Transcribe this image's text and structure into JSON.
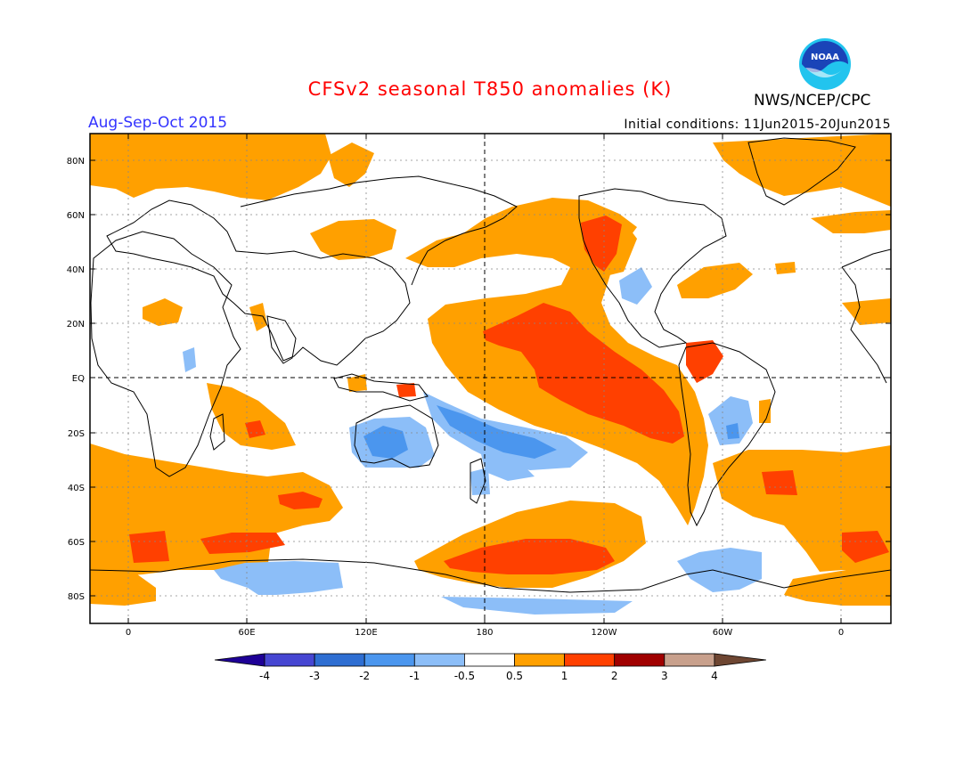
{
  "header": {
    "title": "CFSv2 seasonal T850 anomalies (K)",
    "org": "NWS/NCEP/CPC",
    "season": "Aug-Sep-Oct 2015",
    "initial_conditions": "Initial conditions: 11Jun2015-20Jun2015",
    "logo_text": "NOAA"
  },
  "colors": {
    "title": "#ff0000",
    "season": "#3333ff",
    "c_m4": "#1e0096",
    "c_m3": "#4646d2",
    "c_m2": "#2e6ed2",
    "c_m1": "#4b96ee",
    "c_m05": "#8cbef8",
    "c_0": "#ffffff",
    "c_05": "#ffa000",
    "c_1": "#ff4000",
    "c_2": "#a00000",
    "c_3": "#c8a08c",
    "c_4": "#6e4632",
    "logo_blue": "#1a44b8",
    "logo_cyan": "#22c4ee"
  },
  "map": {
    "lat_labels": [
      "80N",
      "60N",
      "40N",
      "20N",
      "EQ",
      "20S",
      "40S",
      "60S",
      "80S"
    ],
    "lon_labels": [
      "0",
      "60E",
      "120E",
      "180",
      "120W",
      "60W",
      "0"
    ]
  },
  "colorbar": {
    "labels": [
      "-4",
      "-3",
      "-2",
      "-1",
      "-0.5",
      "0.5",
      "1",
      "2",
      "3",
      "4"
    ]
  }
}
